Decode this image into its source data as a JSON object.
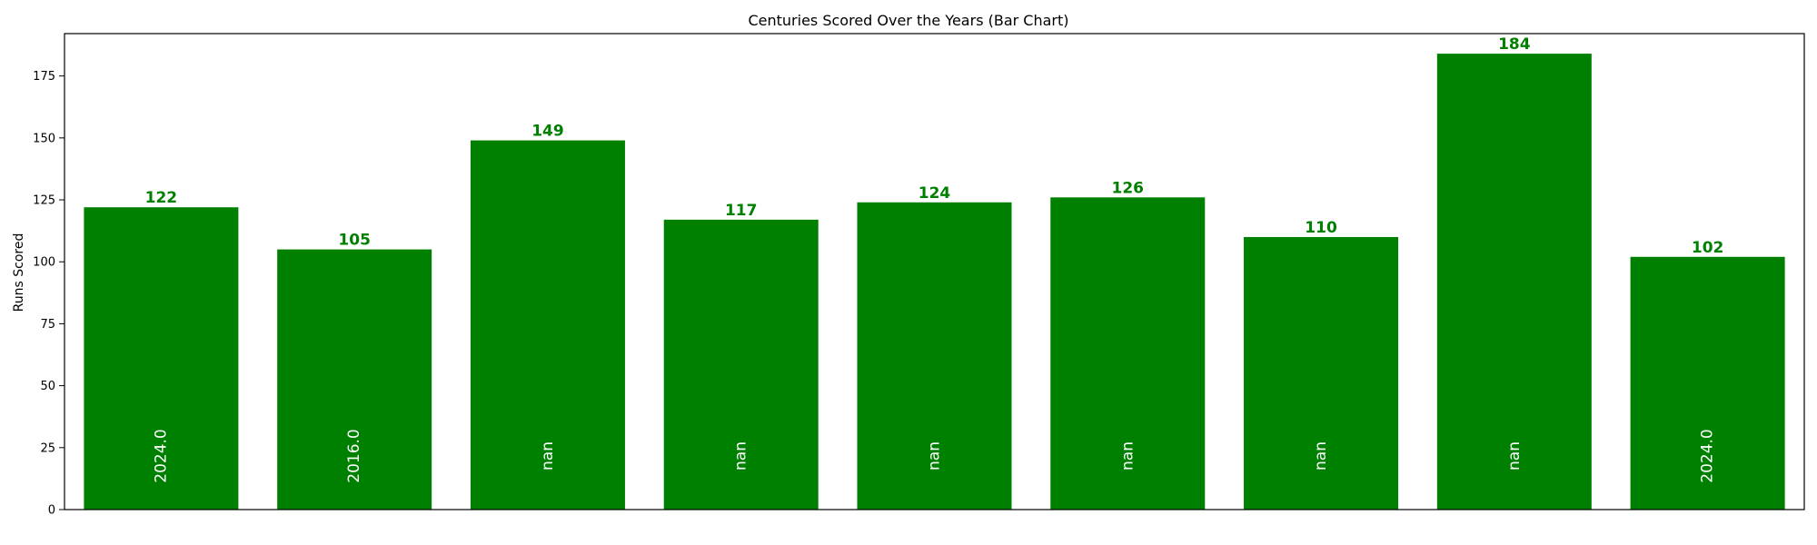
{
  "chart_data": {
    "type": "bar",
    "title": "Centuries Scored Over the Years (Bar Chart)",
    "xlabel": "",
    "ylabel": "Runs Scored",
    "ylim": [
      0,
      192.1
    ],
    "yticks": [
      0,
      25,
      50,
      75,
      100,
      125,
      150,
      175
    ],
    "bar_color": "#008000",
    "value_label_color": "#008000",
    "inner_label_color": "#ffffff",
    "values": [
      122,
      105,
      149,
      117,
      124,
      126,
      110,
      184,
      102
    ],
    "inner_labels": [
      "2024.0",
      "2016.0",
      "nan",
      "nan",
      "nan",
      "nan",
      "nan",
      "nan",
      "2024.0"
    ],
    "grid": false
  }
}
